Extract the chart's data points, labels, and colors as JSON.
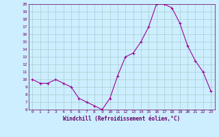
{
  "hours": [
    0,
    1,
    2,
    3,
    4,
    5,
    6,
    7,
    8,
    9,
    10,
    11,
    12,
    13,
    14,
    15,
    16,
    17,
    18,
    19,
    20,
    21,
    22,
    23
  ],
  "values": [
    10,
    9.5,
    9.5,
    10,
    9.5,
    9,
    7.5,
    7,
    6.5,
    6,
    7.5,
    10.5,
    13,
    13.5,
    15,
    17,
    20,
    20,
    19.5,
    17.5,
    14.5,
    12.5,
    11,
    8.5
  ],
  "line_color": "#990099",
  "marker": "+",
  "bg_color": "#cceeff",
  "grid_color": "#aacccc",
  "xlabel": "Windchill (Refroidissement éolien,°C)",
  "xlabel_color": "#660066",
  "tick_color": "#660066",
  "axis_color": "#660066",
  "ylim": [
    6,
    20
  ],
  "xlim": [
    -0.5,
    23.5
  ],
  "yticks": [
    6,
    7,
    8,
    9,
    10,
    11,
    12,
    13,
    14,
    15,
    16,
    17,
    18,
    19,
    20
  ],
  "xticks": [
    0,
    1,
    2,
    3,
    4,
    5,
    6,
    7,
    8,
    9,
    10,
    11,
    12,
    13,
    14,
    15,
    16,
    17,
    18,
    19,
    20,
    21,
    22,
    23
  ]
}
